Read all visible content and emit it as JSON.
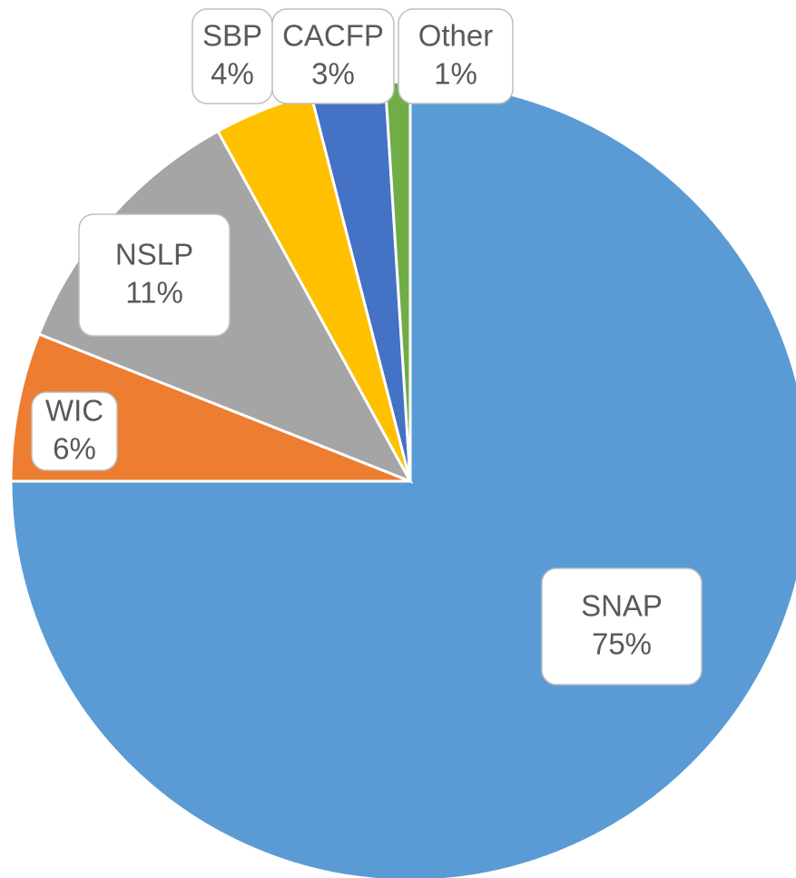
{
  "chart_data": {
    "type": "pie",
    "categories": [
      "SNAP",
      "WIC",
      "NSLP",
      "SBP",
      "CACFP",
      "Other"
    ],
    "values": [
      75,
      6,
      11,
      4,
      3,
      1
    ],
    "value_labels": [
      "75%",
      "6%",
      "11%",
      "4%",
      "3%",
      "1%"
    ],
    "colors": [
      "#5b9bd5",
      "#ed7d31",
      "#a5a5a5",
      "#ffc000",
      "#4472c4",
      "#70ad47"
    ]
  }
}
